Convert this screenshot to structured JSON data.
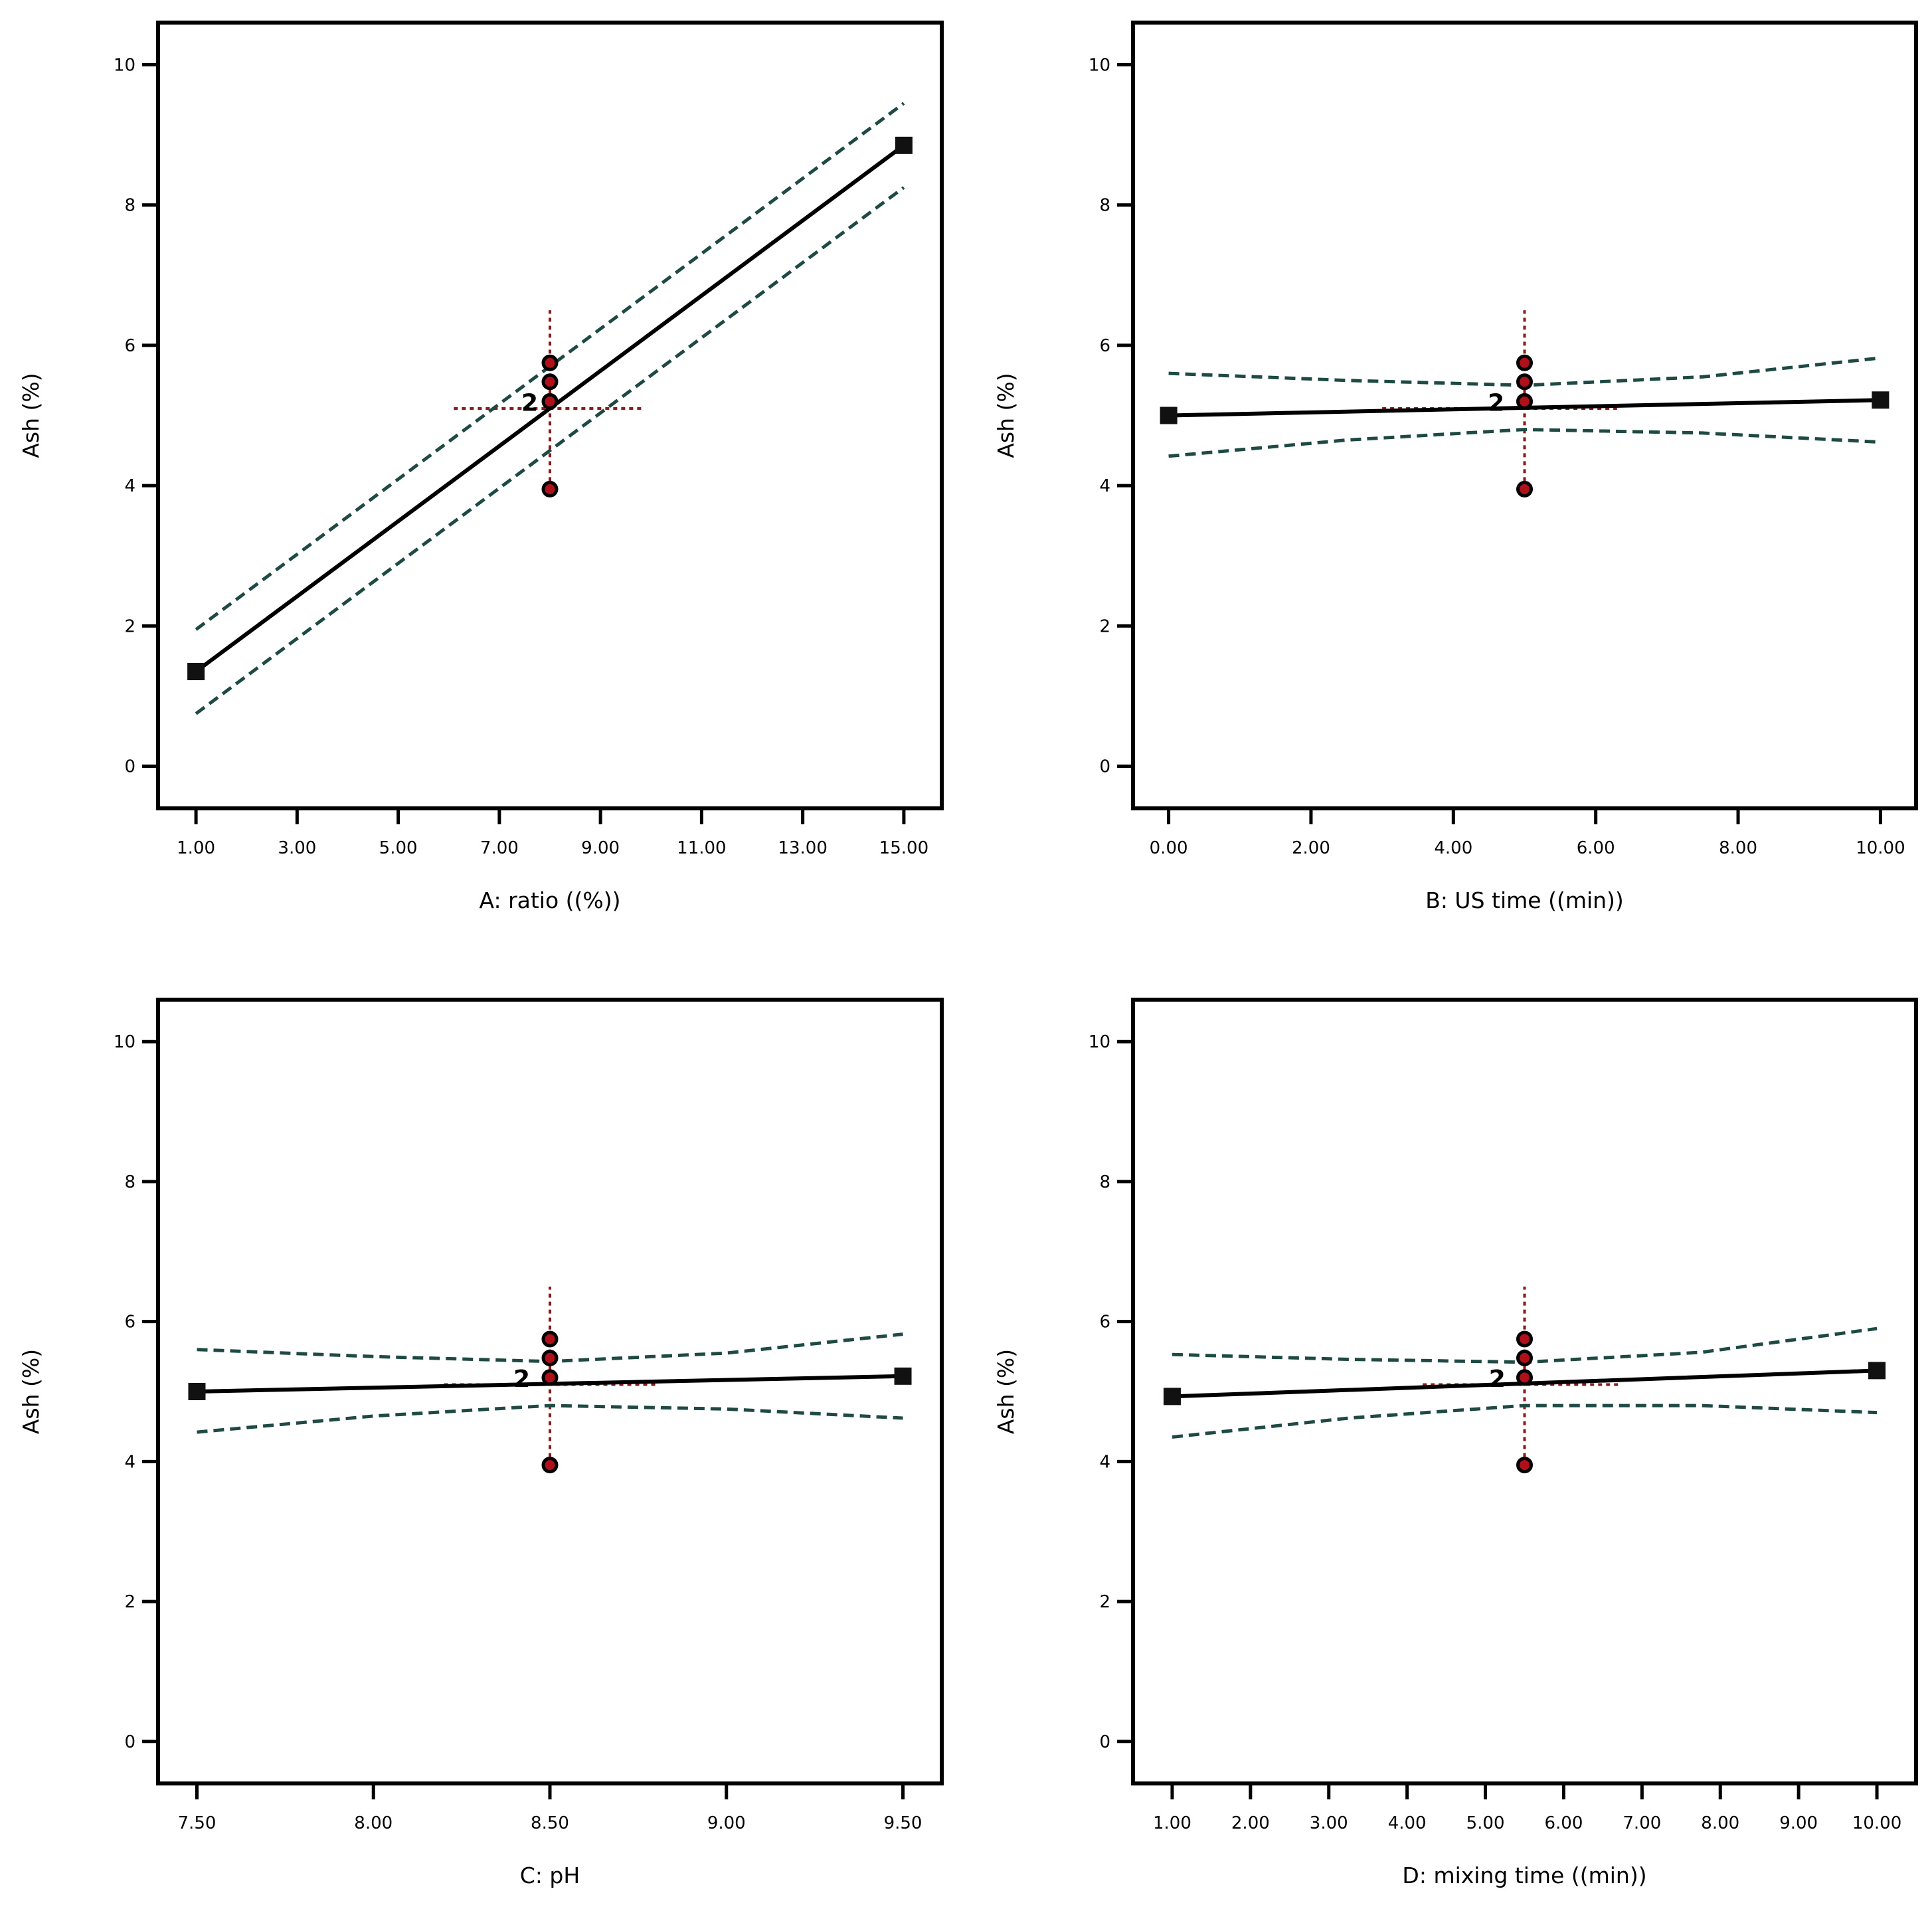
{
  "chart_data": [
    {
      "type": "line",
      "xlabel": "A: ratio ((%))",
      "ylabel": "Ash (%)",
      "xlim": [
        0.25,
        15.75
      ],
      "ylim": [
        -0.6,
        10.6
      ],
      "x_ticks": [
        "1.00",
        "3.00",
        "5.00",
        "7.00",
        "9.00",
        "11.00",
        "13.00",
        "15.00"
      ],
      "x_tick_values": [
        1,
        3,
        5,
        7,
        9,
        11,
        13,
        15
      ],
      "y_ticks": [
        "0",
        "2",
        "4",
        "6",
        "8",
        "10"
      ],
      "y_tick_values": [
        0,
        2,
        4,
        6,
        8,
        10
      ],
      "center_x": 8,
      "center_y": 5.1,
      "fit": {
        "x": [
          1,
          15
        ],
        "y": [
          1.35,
          8.85
        ]
      },
      "ci_upper": {
        "x": [
          1,
          8,
          15
        ],
        "y": [
          1.95,
          5.7,
          9.45
        ]
      },
      "ci_lower": {
        "x": [
          1,
          8,
          15
        ],
        "y": [
          0.75,
          4.5,
          8.25
        ]
      },
      "ref_vertical": [
        3.95,
        6.5
      ],
      "ref_horizontal": [
        6.1,
        9.85
      ],
      "design_points": {
        "x": [
          8,
          8,
          8,
          8
        ],
        "y": [
          5.75,
          5.48,
          5.2,
          3.95
        ]
      },
      "replicate_label": "2",
      "replicate_label_x": 7.6,
      "replicate_label_y": 5.2
    },
    {
      "type": "line",
      "xlabel": "B: US time ((min))",
      "ylabel": "Ash (%)",
      "xlim": [
        -0.5,
        10.5
      ],
      "ylim": [
        -0.6,
        10.6
      ],
      "x_ticks": [
        "0.00",
        "2.00",
        "4.00",
        "6.00",
        "8.00",
        "10.00"
      ],
      "x_tick_values": [
        0,
        2,
        4,
        6,
        8,
        10
      ],
      "y_ticks": [
        "0",
        "2",
        "4",
        "6",
        "8",
        "10"
      ],
      "y_tick_values": [
        0,
        2,
        4,
        6,
        8,
        10
      ],
      "center_x": 5,
      "center_y": 5.1,
      "fit": {
        "x": [
          0,
          10
        ],
        "y": [
          5.0,
          5.22
        ]
      },
      "ci_upper": {
        "x": [
          0,
          2.5,
          5,
          7.5,
          10
        ],
        "y": [
          5.6,
          5.5,
          5.43,
          5.55,
          5.82
        ]
      },
      "ci_lower": {
        "x": [
          0,
          2.5,
          5,
          7.5,
          10
        ],
        "y": [
          4.42,
          4.65,
          4.8,
          4.75,
          4.62
        ]
      },
      "ref_vertical": [
        3.95,
        6.5
      ],
      "ref_horizontal": [
        3.0,
        6.3
      ],
      "design_points": {
        "x": [
          5,
          5,
          5,
          5
        ],
        "y": [
          5.75,
          5.48,
          5.2,
          3.95
        ]
      },
      "replicate_label": "2",
      "replicate_label_x": 4.6,
      "replicate_label_y": 5.2
    },
    {
      "type": "line",
      "xlabel": "C: pH",
      "ylabel": "Ash (%)",
      "xlim": [
        7.39,
        9.61
      ],
      "ylim": [
        -0.6,
        10.6
      ],
      "x_ticks": [
        "7.50",
        "8.00",
        "8.50",
        "9.00",
        "9.50"
      ],
      "x_tick_values": [
        7.5,
        8,
        8.5,
        9,
        9.5
      ],
      "y_ticks": [
        "0",
        "2",
        "4",
        "6",
        "8",
        "10"
      ],
      "y_tick_values": [
        0,
        2,
        4,
        6,
        8,
        10
      ],
      "center_x": 8.5,
      "center_y": 5.1,
      "fit": {
        "x": [
          7.5,
          9.5
        ],
        "y": [
          5.0,
          5.22
        ]
      },
      "ci_upper": {
        "x": [
          7.5,
          8,
          8.5,
          9,
          9.5
        ],
        "y": [
          5.6,
          5.5,
          5.43,
          5.55,
          5.82
        ]
      },
      "ci_lower": {
        "x": [
          7.5,
          8,
          8.5,
          9,
          9.5
        ],
        "y": [
          4.42,
          4.65,
          4.8,
          4.75,
          4.62
        ]
      },
      "ref_vertical": [
        3.95,
        6.5
      ],
      "ref_horizontal": [
        8.2,
        8.8
      ],
      "design_points": {
        "x": [
          8.5,
          8.5,
          8.5,
          8.5
        ],
        "y": [
          5.75,
          5.48,
          5.2,
          3.95
        ]
      },
      "replicate_label": "2",
      "replicate_label_x": 8.42,
      "replicate_label_y": 5.2
    },
    {
      "type": "line",
      "xlabel": "D: mixing time ((min))",
      "ylabel": "Ash (%)",
      "xlim": [
        0.5,
        10.5
      ],
      "ylim": [
        -0.6,
        10.6
      ],
      "x_ticks": [
        "1.00",
        "2.00",
        "3.00",
        "4.00",
        "5.00",
        "6.00",
        "7.00",
        "8.00",
        "9.00",
        "10.00"
      ],
      "x_tick_values": [
        1,
        2,
        3,
        4,
        5,
        6,
        7,
        8,
        9,
        10
      ],
      "y_ticks": [
        "0",
        "2",
        "4",
        "6",
        "8",
        "10"
      ],
      "y_tick_values": [
        0,
        2,
        4,
        6,
        8,
        10
      ],
      "center_x": 5.5,
      "center_y": 5.1,
      "fit": {
        "x": [
          1,
          10
        ],
        "y": [
          4.93,
          5.3
        ]
      },
      "ci_upper": {
        "x": [
          1,
          3.25,
          5.5,
          7.75,
          10
        ],
        "y": [
          5.53,
          5.46,
          5.42,
          5.56,
          5.9
        ]
      },
      "ci_lower": {
        "x": [
          1,
          3.25,
          5.5,
          7.75,
          10
        ],
        "y": [
          4.35,
          4.62,
          4.8,
          4.8,
          4.7
        ]
      },
      "ref_vertical": [
        3.95,
        6.5
      ],
      "ref_horizontal": [
        4.2,
        6.7
      ],
      "design_points": {
        "x": [
          5.5,
          5.5,
          5.5,
          5.5
        ],
        "y": [
          5.75,
          5.48,
          5.2,
          3.95
        ]
      },
      "replicate_label": "2",
      "replicate_label_x": 5.15,
      "replicate_label_y": 5.2
    }
  ]
}
